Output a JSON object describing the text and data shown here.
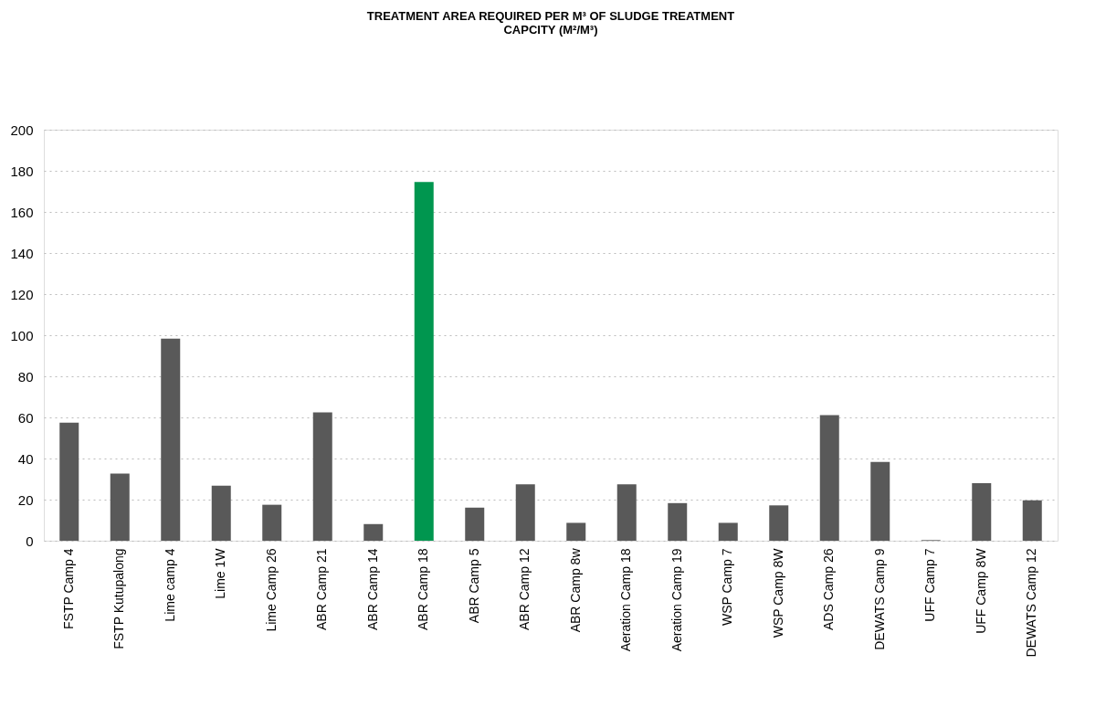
{
  "chart_data": {
    "type": "bar",
    "title": [
      "TREATMENT AREA REQUIRED PER M³ OF SLUDGE TREATMENT",
      "CAPCITY (M²/M³)"
    ],
    "categories": [
      "FSTP Camp 4",
      "FSTP Kutupalong",
      "Lime camp 4",
      "Lime 1W",
      "Lime Camp 26",
      "ABR Camp 21",
      "ABR Camp 14",
      "ABR Camp 18",
      "ABR Camp 5",
      "ABR Camp 12",
      "ABR Camp 8w",
      "Aeration Camp 18",
      "Aeration Camp 19",
      "WSP Camp 7",
      "WSP Camp 8W",
      "ADS Camp 26",
      "DEWATS Camp 9",
      "UFF Camp 7",
      "UFF Camp 8W",
      "DEWATS Camp 12"
    ],
    "values": [
      57.5,
      32.7,
      98.3,
      26.8,
      17.5,
      62.5,
      8.1,
      174.6,
      16.1,
      27.5,
      8.7,
      27.5,
      18.3,
      8.7,
      17.2,
      61.1,
      38.3,
      0.3,
      28.0,
      19.7
    ],
    "colors": [
      "#595959",
      "#595959",
      "#595959",
      "#595959",
      "#595959",
      "#595959",
      "#595959",
      "#00964f",
      "#595959",
      "#595959",
      "#595959",
      "#595959",
      "#595959",
      "#595959",
      "#595959",
      "#595959",
      "#595959",
      "#595959",
      "#595959",
      "#595959"
    ],
    "ylim": [
      0,
      200
    ],
    "yticks": [
      0,
      20,
      40,
      60,
      80,
      100,
      120,
      140,
      160,
      180,
      200
    ],
    "grid": "y"
  }
}
